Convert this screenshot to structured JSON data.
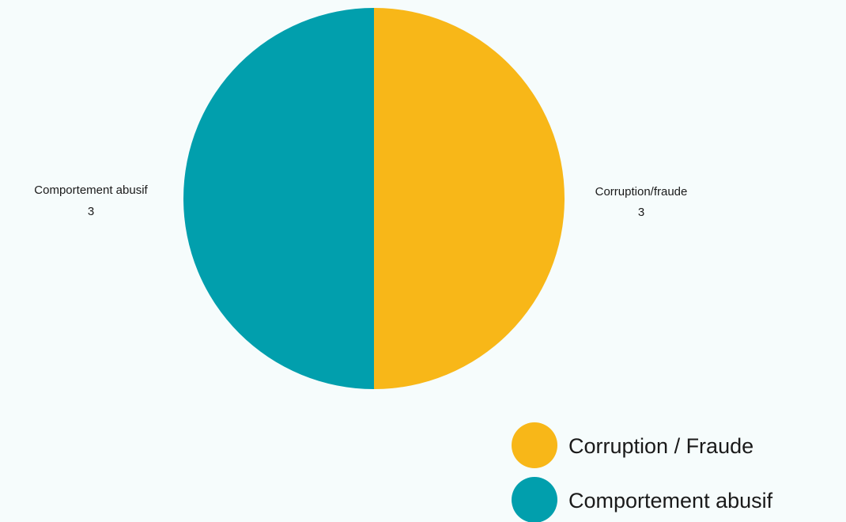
{
  "chart_data": {
    "type": "pie",
    "title": "",
    "slices": [
      {
        "label": "Corruption/fraude",
        "value": 3,
        "color": "#f8b718"
      },
      {
        "label": "Comportement abusif",
        "value": 3,
        "color": "#019fad"
      }
    ],
    "legend": {
      "placement": "bottom-right",
      "entries": [
        {
          "label": "Corruption / Fraude",
          "color": "#f8b718"
        },
        {
          "label": "Comportement abusif",
          "color": "#019fad"
        }
      ]
    }
  }
}
